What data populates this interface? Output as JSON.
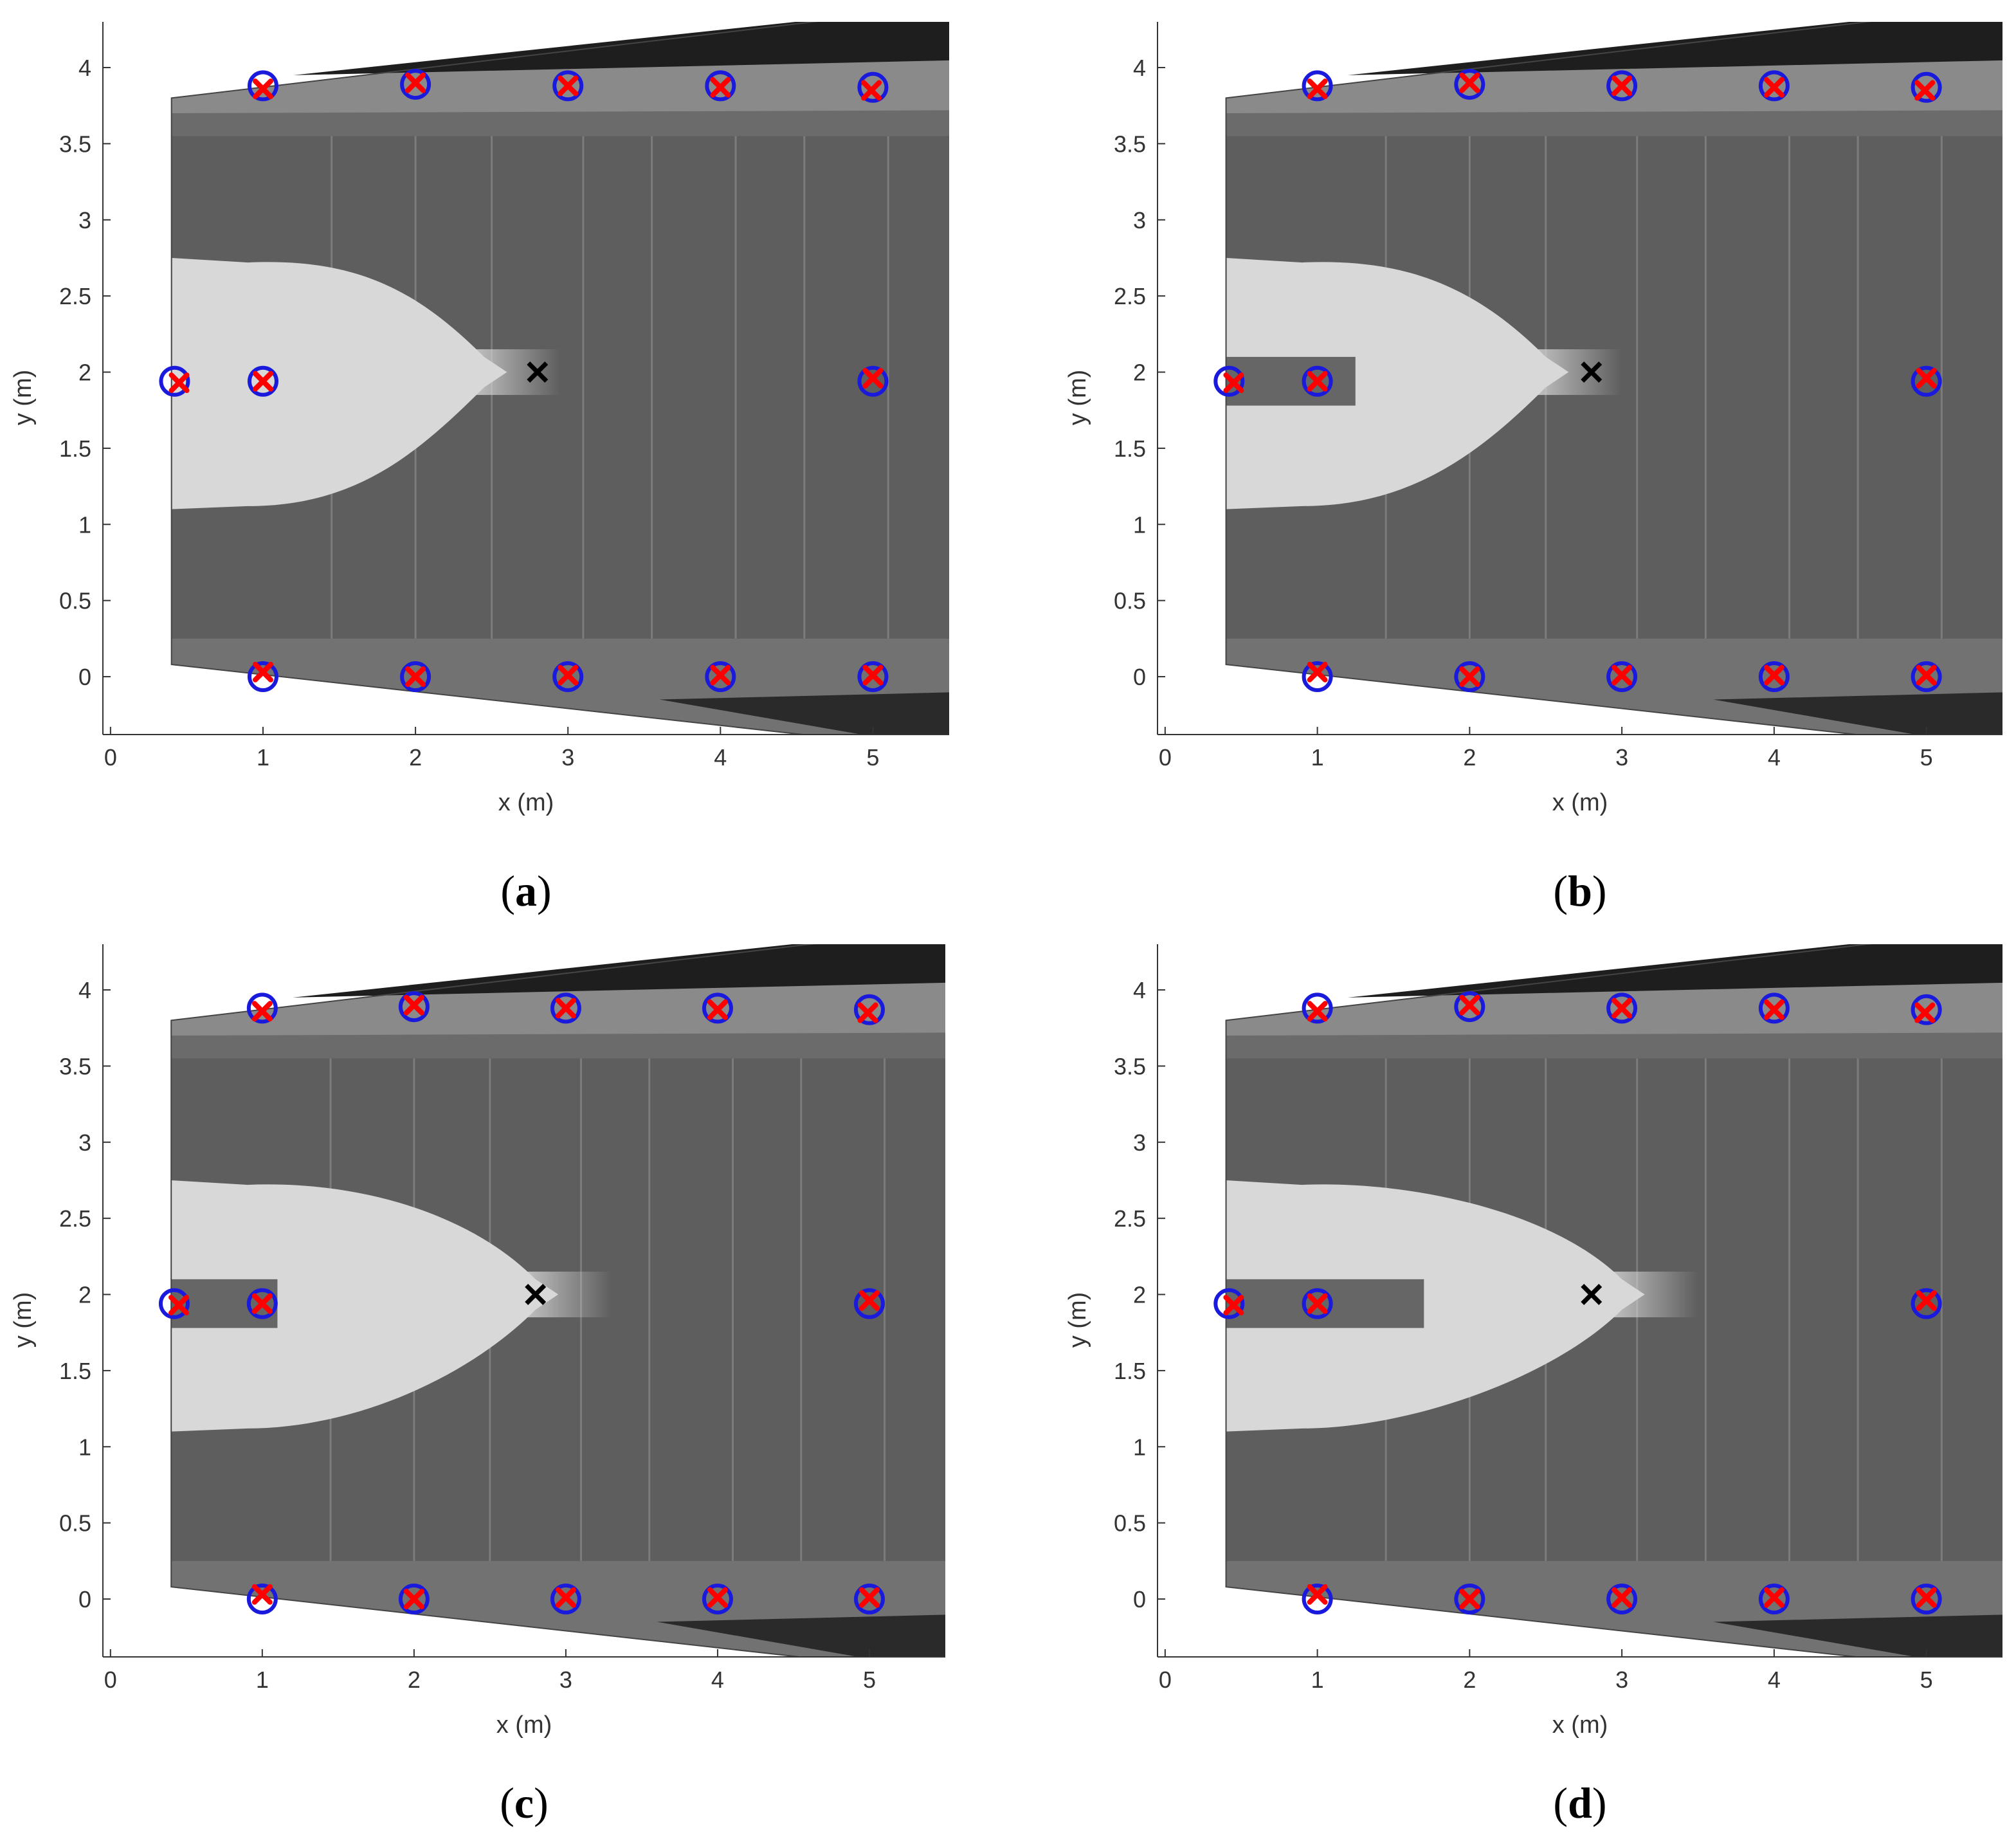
{
  "figure": {
    "panels": [
      {
        "caption": "(a)"
      },
      {
        "caption": "(b)"
      },
      {
        "caption": "(c)"
      },
      {
        "caption": "(d)"
      }
    ]
  },
  "colors": {
    "reference_marker": "#1a1adc",
    "detected_marker": "#ff0000",
    "target_marker": "#000000",
    "axis": "#333333",
    "background": "#ffffff",
    "flow_bright": "#d8d8d8",
    "bed_dark": "#5e5e5e"
  },
  "chart_data": [
    {
      "panel": "a",
      "type": "scatter",
      "xlabel": "x (m)",
      "ylabel": "y (m)",
      "xlim": [
        -0.05,
        5.5
      ],
      "ylim": [
        -0.38,
        4.3
      ],
      "xticks": [
        0,
        1,
        2,
        3,
        4,
        5
      ],
      "yticks": [
        0,
        0.5,
        1,
        1.5,
        2,
        2.5,
        3,
        3.5,
        4
      ],
      "background": "grayscale top-view photograph of flume bed",
      "plume_tip_x": 2.6,
      "series": [
        {
          "marker": "blue-circle",
          "points": [
            [
              1,
              3.88
            ],
            [
              2,
              3.89
            ],
            [
              3,
              3.88
            ],
            [
              4,
              3.88
            ],
            [
              5,
              3.87
            ],
            [
              0.42,
              1.94
            ],
            [
              1,
              1.94
            ],
            [
              5,
              1.94
            ],
            [
              1,
              0.0
            ],
            [
              2,
              0.0
            ],
            [
              3,
              0.0
            ],
            [
              4,
              0.0
            ],
            [
              5,
              0.0
            ]
          ]
        },
        {
          "marker": "red-x",
          "points": [
            [
              1.0,
              3.86
            ],
            [
              2.0,
              3.9
            ],
            [
              3.0,
              3.88
            ],
            [
              4.0,
              3.87
            ],
            [
              4.99,
              3.85
            ],
            [
              0.45,
              1.93
            ],
            [
              1.0,
              1.94
            ],
            [
              5.0,
              1.96
            ],
            [
              1.0,
              0.03
            ],
            [
              2.0,
              0.0
            ],
            [
              3.0,
              0.01
            ],
            [
              4.0,
              0.01
            ],
            [
              5.0,
              0.01
            ]
          ]
        },
        {
          "marker": "black-x",
          "points": [
            [
              2.8,
              2.0
            ]
          ]
        }
      ]
    },
    {
      "panel": "b",
      "type": "scatter",
      "xlabel": "x (m)",
      "ylabel": "y (m)",
      "xlim": [
        -0.05,
        5.5
      ],
      "ylim": [
        -0.38,
        4.3
      ],
      "xticks": [
        0,
        1,
        2,
        3,
        4,
        5
      ],
      "yticks": [
        0,
        0.5,
        1,
        1.5,
        2,
        2.5,
        3,
        3.5,
        4
      ],
      "background": "grayscale top-view photograph of flume bed",
      "plume_tip_x": 2.65,
      "series": [
        {
          "marker": "blue-circle",
          "points": [
            [
              1,
              3.88
            ],
            [
              2,
              3.89
            ],
            [
              3,
              3.88
            ],
            [
              4,
              3.88
            ],
            [
              5,
              3.87
            ],
            [
              0.42,
              1.94
            ],
            [
              1,
              1.94
            ],
            [
              5,
              1.94
            ],
            [
              1,
              0.0
            ],
            [
              2,
              0.0
            ],
            [
              3,
              0.0
            ],
            [
              4,
              0.0
            ],
            [
              5,
              0.0
            ]
          ]
        },
        {
          "marker": "red-x",
          "points": [
            [
              1.0,
              3.86
            ],
            [
              2.0,
              3.9
            ],
            [
              3.0,
              3.88
            ],
            [
              4.0,
              3.87
            ],
            [
              4.99,
              3.85
            ],
            [
              0.45,
              1.93
            ],
            [
              1.0,
              1.94
            ],
            [
              5.0,
              1.96
            ],
            [
              1.0,
              0.03
            ],
            [
              2.0,
              0.0
            ],
            [
              3.0,
              0.01
            ],
            [
              4.0,
              0.01
            ],
            [
              5.0,
              0.01
            ]
          ]
        },
        {
          "marker": "black-x",
          "points": [
            [
              2.8,
              2.0
            ]
          ]
        }
      ]
    },
    {
      "panel": "c",
      "type": "scatter",
      "xlabel": "x (m)",
      "ylabel": "y (m)",
      "xlim": [
        -0.05,
        5.5
      ],
      "ylim": [
        -0.38,
        4.3
      ],
      "xticks": [
        0,
        1,
        2,
        3,
        4,
        5
      ],
      "yticks": [
        0,
        0.5,
        1,
        1.5,
        2,
        2.5,
        3,
        3.5,
        4
      ],
      "background": "grayscale top-view photograph of flume bed",
      "plume_tip_x": 2.95,
      "series": [
        {
          "marker": "blue-circle",
          "points": [
            [
              1,
              3.88
            ],
            [
              2,
              3.89
            ],
            [
              3,
              3.88
            ],
            [
              4,
              3.88
            ],
            [
              5,
              3.87
            ],
            [
              0.42,
              1.94
            ],
            [
              1,
              1.94
            ],
            [
              5,
              1.94
            ],
            [
              1,
              0.0
            ],
            [
              2,
              0.0
            ],
            [
              3,
              0.0
            ],
            [
              4,
              0.0
            ],
            [
              5,
              0.0
            ]
          ]
        },
        {
          "marker": "red-x",
          "points": [
            [
              1.0,
              3.86
            ],
            [
              2.0,
              3.9
            ],
            [
              3.0,
              3.88
            ],
            [
              4.0,
              3.87
            ],
            [
              4.99,
              3.85
            ],
            [
              0.45,
              1.93
            ],
            [
              1.0,
              1.94
            ],
            [
              5.0,
              1.96
            ],
            [
              1.0,
              0.03
            ],
            [
              2.0,
              0.0
            ],
            [
              3.0,
              0.01
            ],
            [
              4.0,
              0.01
            ],
            [
              5.0,
              0.01
            ]
          ]
        },
        {
          "marker": "black-x",
          "points": [
            [
              2.8,
              2.0
            ]
          ]
        }
      ]
    },
    {
      "panel": "d",
      "type": "scatter",
      "xlabel": "x (m)",
      "ylabel": "y (m)",
      "xlim": [
        -0.05,
        5.5
      ],
      "ylim": [
        -0.38,
        4.3
      ],
      "xticks": [
        0,
        1,
        2,
        3,
        4,
        5
      ],
      "yticks": [
        0,
        0.5,
        1,
        1.5,
        2,
        2.5,
        3,
        3.5,
        4
      ],
      "background": "grayscale top-view photograph of flume bed",
      "plume_tip_x": 3.15,
      "series": [
        {
          "marker": "blue-circle",
          "points": [
            [
              1,
              3.88
            ],
            [
              2,
              3.89
            ],
            [
              3,
              3.88
            ],
            [
              4,
              3.88
            ],
            [
              5,
              3.87
            ],
            [
              0.42,
              1.94
            ],
            [
              1,
              1.94
            ],
            [
              5,
              1.94
            ],
            [
              1,
              0.0
            ],
            [
              2,
              0.0
            ],
            [
              3,
              0.0
            ],
            [
              4,
              0.0
            ],
            [
              5,
              0.0
            ]
          ]
        },
        {
          "marker": "red-x",
          "points": [
            [
              1.0,
              3.86
            ],
            [
              2.0,
              3.9
            ],
            [
              3.0,
              3.88
            ],
            [
              4.0,
              3.87
            ],
            [
              4.99,
              3.85
            ],
            [
              0.45,
              1.93
            ],
            [
              1.0,
              1.94
            ],
            [
              5.0,
              1.96
            ],
            [
              1.0,
              0.03
            ],
            [
              2.0,
              0.0
            ],
            [
              3.0,
              0.01
            ],
            [
              4.0,
              0.01
            ],
            [
              5.0,
              0.01
            ]
          ]
        },
        {
          "marker": "black-x",
          "points": [
            [
              2.8,
              2.0
            ]
          ]
        }
      ]
    }
  ]
}
